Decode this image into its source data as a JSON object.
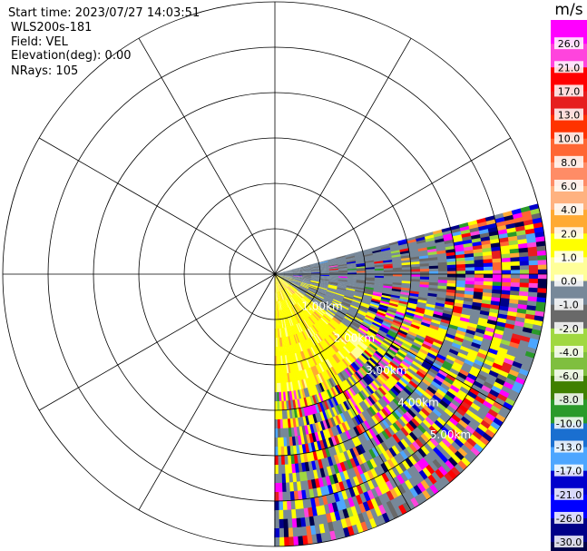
{
  "header": {
    "start_time": "Start time: 2023/07/27 14:03:51",
    "instrument": "WLS200s-181",
    "field": "Field: VEL",
    "elevation": "Elevation(deg): 0.00",
    "nrays": "NRays: 105"
  },
  "chart_data": {
    "type": "ppi",
    "field": "VEL",
    "units": "m/s",
    "range_rings_km": [
      1.0,
      2.0,
      3.0,
      4.0,
      5.0
    ],
    "ring_labels": [
      "1.00km",
      "2.00km",
      "3.00km",
      "4.00km",
      "5.00km"
    ],
    "max_range_km": 6.0,
    "azimuth_spokes_deg": [
      0,
      30,
      60,
      90,
      120,
      150,
      180,
      210,
      240,
      270,
      300,
      330
    ],
    "sector_deg": [
      75,
      180
    ],
    "nrays": 105,
    "colorbar": {
      "title": "m/s",
      "tick_labels": [
        "26.0",
        "21.0",
        "17.0",
        "13.0",
        "10.0",
        "8.0",
        "6.0",
        "4.0",
        "2.0",
        "1.0",
        "0.0",
        "-1.0",
        "-2.0",
        "-4.0",
        "-6.0",
        "-8.0",
        "-10.0",
        "-13.0",
        "-17.0",
        "-21.0",
        "-26.0",
        "-30.0"
      ],
      "colors": [
        "#ff00ff",
        "#ff44dd",
        "#ff0000",
        "#e61e1e",
        "#ff3300",
        "#ff6633",
        "#ff8c66",
        "#ffb280",
        "#ffaa33",
        "#ffff00",
        "#ffff99",
        "#778899",
        "#696969",
        "#a0d840",
        "#7fbf3f",
        "#408000",
        "#2a9a2a",
        "#1a6fd0",
        "#4da6ff",
        "#0000cc",
        "#0000ff",
        "#000088",
        "#00004a"
      ]
    }
  }
}
